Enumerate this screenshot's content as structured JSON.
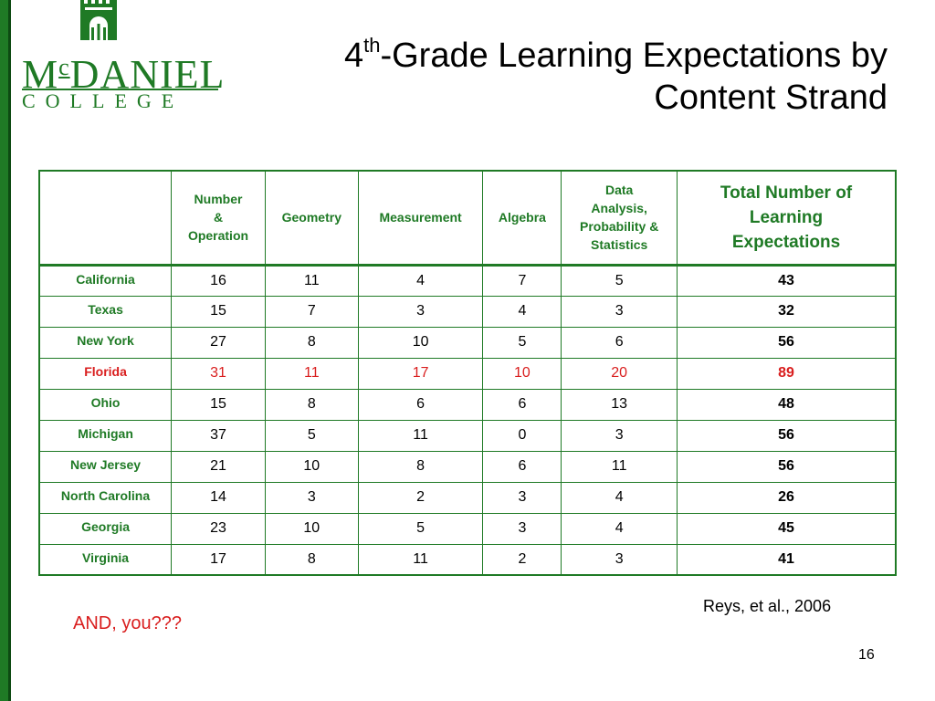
{
  "logo": {
    "name_prefix": "M",
    "name_sup": "c",
    "name_main": "DANIEL",
    "subtitle": "COLLEGE"
  },
  "title": {
    "prefix": "4",
    "sup": "th",
    "line1_rest": "-Grade Learning Expectations by",
    "line2": "Content Strand"
  },
  "table": {
    "headers": {
      "blank": "",
      "c1": [
        "Number",
        "&",
        "Operation"
      ],
      "c2": "Geometry",
      "c3": "Measurement",
      "c4": "Algebra",
      "c5": [
        "Data",
        "Analysis,",
        "Probability &",
        "Statistics"
      ],
      "c6": [
        "Total Number of",
        "Learning",
        "Expectations"
      ]
    },
    "rows": [
      {
        "state": "California",
        "values": [
          "16",
          "11",
          "4",
          "7",
          "5"
        ],
        "total": "43"
      },
      {
        "state": "Texas",
        "values": [
          "15",
          "7",
          "3",
          "4",
          "3"
        ],
        "total": "32"
      },
      {
        "state": "New York",
        "values": [
          "27",
          "8",
          "10",
          "5",
          "6"
        ],
        "total": "56"
      },
      {
        "state": "Florida",
        "values": [
          "31",
          "11",
          "17",
          "10",
          "20"
        ],
        "total": "89"
      },
      {
        "state": "Ohio",
        "values": [
          "15",
          "8",
          "6",
          "6",
          "13"
        ],
        "total": "48"
      },
      {
        "state": "Michigan",
        "values": [
          "37",
          "5",
          "11",
          "0",
          "3"
        ],
        "total": "56"
      },
      {
        "state": "New Jersey",
        "values": [
          "21",
          "10",
          "8",
          "6",
          "11"
        ],
        "total": "56"
      },
      {
        "state": "North Carolina",
        "values": [
          "14",
          "3",
          "2",
          "3",
          "4"
        ],
        "total": "26"
      },
      {
        "state": "Georgia",
        "values": [
          "23",
          "10",
          "5",
          "3",
          "4"
        ],
        "total": "45"
      },
      {
        "state": "Virginia",
        "values": [
          "17",
          "8",
          "11",
          "2",
          "3"
        ],
        "total": "41"
      }
    ],
    "highlight_row": "Florida"
  },
  "citation": "Reys, et al., 2006",
  "question": "AND, you???",
  "page_number": "16",
  "colors": {
    "brand_green": "#1f7a25",
    "highlight_red": "#d91e1e"
  }
}
